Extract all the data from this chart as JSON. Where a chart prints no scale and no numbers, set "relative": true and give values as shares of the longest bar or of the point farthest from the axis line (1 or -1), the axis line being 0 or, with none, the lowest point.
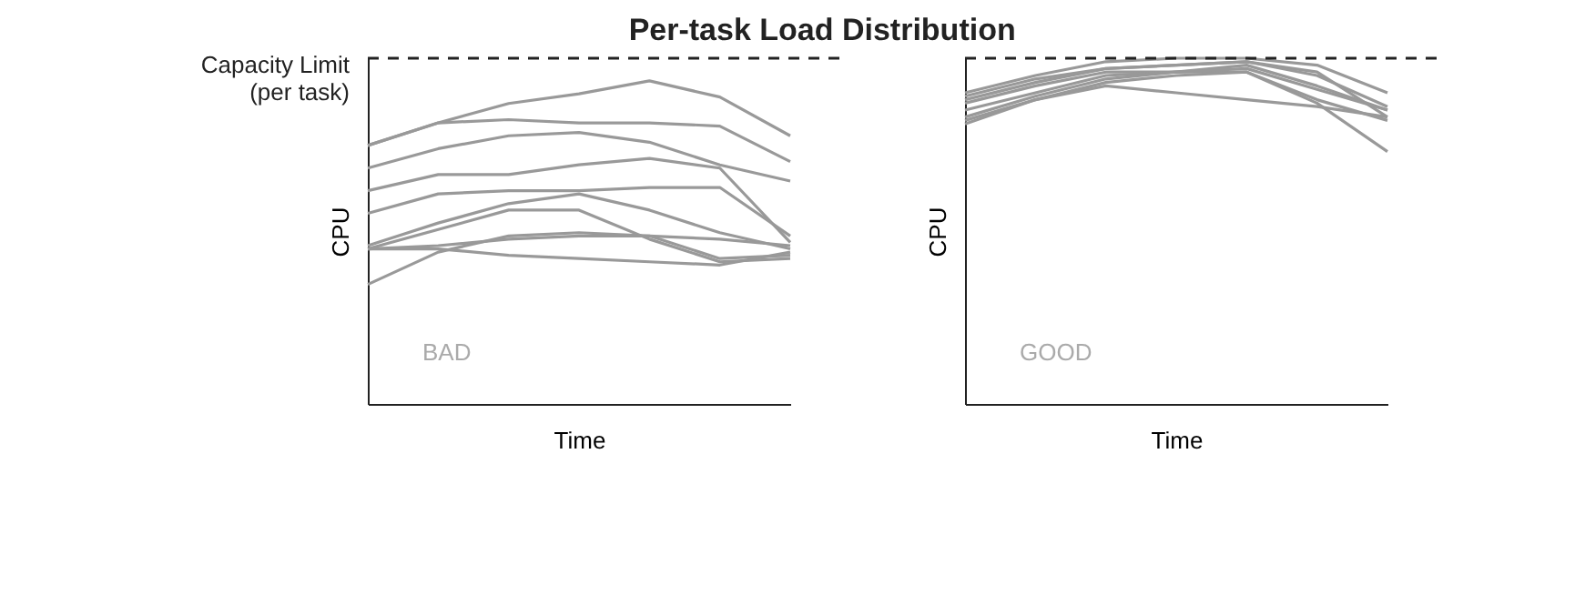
{
  "chart_data": [
    {
      "type": "line",
      "title": "Per-task Load Distribution",
      "xlabel": "Time",
      "ylabel": "CPU",
      "relative": true,
      "legend": false,
      "grid": false,
      "marker": "none",
      "line_style": "solid",
      "categories": [
        null,
        null,
        null,
        null,
        null,
        null,
        null
      ],
      "annotations": [
        "BAD"
      ],
      "ref_lines": [
        {
          "axis": "y",
          "value": 1.07,
          "label": "Capacity Limit\n(per task)",
          "color": "#222222",
          "line_style": "dashed"
        }
      ],
      "series": [
        {
          "color": "#999999",
          "values": [
            0.8,
            0.87,
            0.93,
            0.96,
            1.0,
            0.95,
            0.83
          ]
        },
        {
          "color": "#999999",
          "values": [
            0.8,
            0.87,
            0.88,
            0.87,
            0.87,
            0.86,
            0.75
          ]
        },
        {
          "color": "#999999",
          "values": [
            0.73,
            0.79,
            0.83,
            0.84,
            0.81,
            0.74,
            0.69
          ]
        },
        {
          "color": "#999999",
          "values": [
            0.66,
            0.71,
            0.71,
            0.74,
            0.76,
            0.73,
            0.5
          ]
        },
        {
          "color": "#999999",
          "values": [
            0.59,
            0.65,
            0.66,
            0.66,
            0.67,
            0.67,
            0.52
          ]
        },
        {
          "color": "#999999",
          "values": [
            0.49,
            0.56,
            0.62,
            0.65,
            0.6,
            0.53,
            0.48
          ]
        },
        {
          "color": "#999999",
          "values": [
            0.48,
            0.54,
            0.6,
            0.6,
            0.51,
            0.44,
            0.45
          ]
        },
        {
          "color": "#999999",
          "values": [
            0.48,
            0.49,
            0.51,
            0.52,
            0.52,
            0.51,
            0.49
          ]
        },
        {
          "color": "#999999",
          "values": [
            0.48,
            0.48,
            0.46,
            0.45,
            0.44,
            0.43,
            0.47
          ]
        },
        {
          "color": "#999999",
          "values": [
            0.37,
            0.47,
            0.52,
            0.53,
            0.52,
            0.45,
            0.46
          ]
        }
      ]
    },
    {
      "type": "line",
      "xlabel": "Time",
      "ylabel": "CPU",
      "relative": true,
      "legend": false,
      "grid": false,
      "marker": "none",
      "line_style": "solid",
      "categories": [
        null,
        null,
        null,
        null,
        null,
        null,
        null
      ],
      "annotations": [
        "GOOD"
      ],
      "ref_lines": [
        {
          "axis": "y",
          "value": 1.0,
          "color": "#222222",
          "line_style": "dashed"
        }
      ],
      "series": [
        {
          "color": "#999999",
          "values": [
            0.9,
            0.95,
            0.99,
            1.0,
            1.0,
            0.98,
            0.9
          ]
        },
        {
          "color": "#999999",
          "values": [
            0.88,
            0.93,
            0.97,
            0.98,
            0.99,
            0.96,
            0.83
          ]
        },
        {
          "color": "#999999",
          "values": [
            0.87,
            0.92,
            0.96,
            0.96,
            0.98,
            0.92,
            0.85
          ]
        },
        {
          "color": "#999999",
          "values": [
            0.85,
            0.9,
            0.95,
            0.96,
            0.96,
            0.88,
            0.82
          ]
        },
        {
          "color": "#999999",
          "values": [
            0.82,
            0.88,
            0.93,
            0.95,
            0.96,
            0.87,
            0.73
          ]
        },
        {
          "color": "#999999",
          "values": [
            0.81,
            0.88,
            0.92,
            0.9,
            0.88,
            0.86,
            0.83
          ]
        },
        {
          "color": "#999999",
          "values": [
            0.89,
            0.94,
            0.97,
            0.98,
            0.99,
            0.95,
            0.86
          ]
        },
        {
          "color": "#999999",
          "values": [
            0.83,
            0.89,
            0.94,
            0.96,
            0.97,
            0.91,
            0.85
          ]
        }
      ]
    }
  ]
}
